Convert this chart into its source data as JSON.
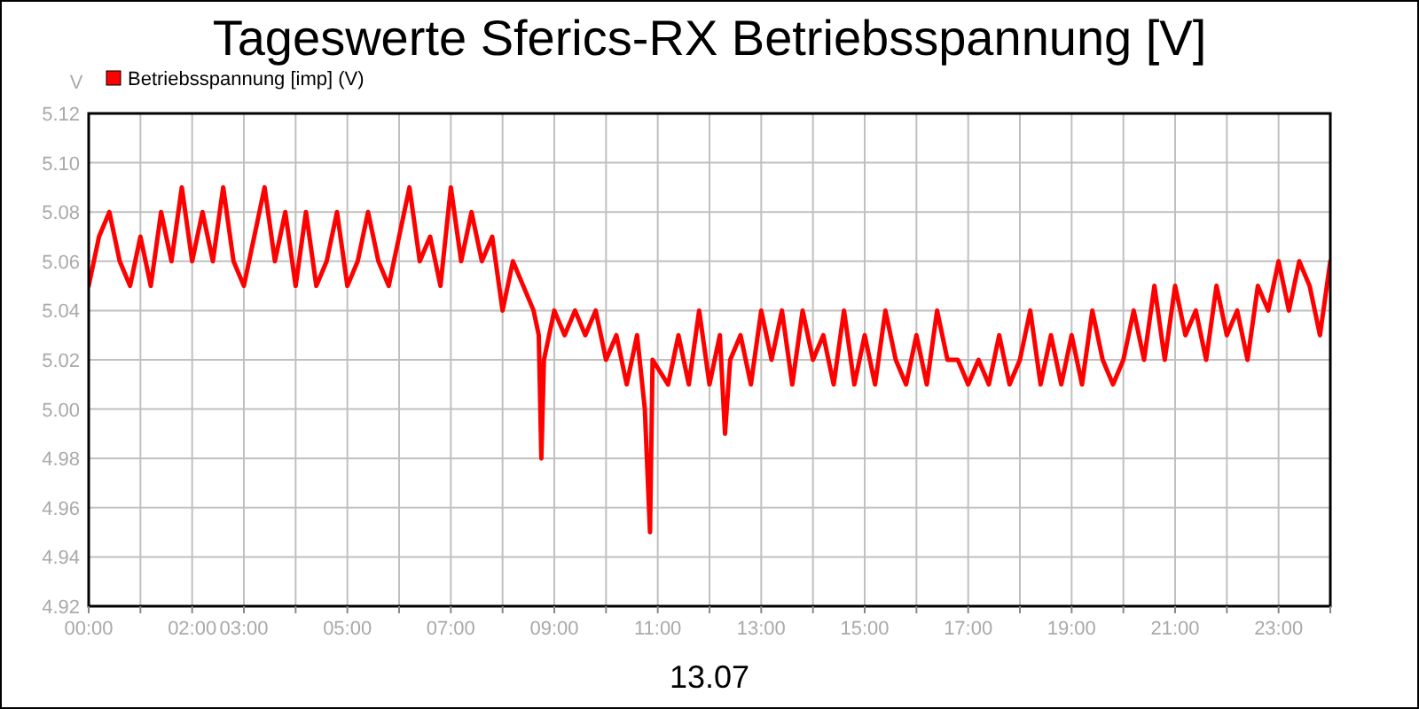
{
  "chart_data": {
    "type": "line",
    "title": "Tageswerte Sferics-RX Betriebsspannung [V]",
    "xlabel": "13.07",
    "ylabel": "V",
    "x": [
      0,
      0.2,
      0.4,
      0.6,
      0.8,
      1.0,
      1.2,
      1.4,
      1.6,
      1.8,
      2.0,
      2.2,
      2.4,
      2.6,
      2.8,
      3.0,
      3.2,
      3.4,
      3.6,
      3.8,
      4.0,
      4.2,
      4.4,
      4.6,
      4.8,
      5.0,
      5.2,
      5.4,
      5.6,
      5.8,
      6.0,
      6.2,
      6.4,
      6.6,
      6.8,
      7.0,
      7.2,
      7.4,
      7.6,
      7.8,
      8.0,
      8.2,
      8.4,
      8.6,
      8.7,
      8.75,
      8.8,
      9.0,
      9.2,
      9.4,
      9.6,
      9.8,
      10.0,
      10.2,
      10.4,
      10.6,
      10.75,
      10.85,
      10.9,
      11.2,
      11.4,
      11.6,
      11.8,
      12.0,
      12.2,
      12.3,
      12.4,
      12.6,
      12.8,
      13.0,
      13.2,
      13.4,
      13.6,
      13.8,
      14.0,
      14.2,
      14.4,
      14.6,
      14.8,
      15.0,
      15.2,
      15.4,
      15.6,
      15.8,
      16.0,
      16.2,
      16.4,
      16.6,
      16.8,
      17.0,
      17.2,
      17.4,
      17.6,
      17.8,
      18.0,
      18.2,
      18.4,
      18.6,
      18.8,
      19.0,
      19.2,
      19.4,
      19.6,
      19.8,
      20.0,
      20.2,
      20.4,
      20.6,
      20.8,
      21.0,
      21.2,
      21.4,
      21.6,
      21.8,
      22.0,
      22.2,
      22.4,
      22.6,
      22.8,
      23.0,
      23.2,
      23.4,
      23.6,
      23.8,
      24.0
    ],
    "series": [
      {
        "name": "Betriebsspannung [imp] (V)",
        "color": "#ff0000",
        "values": [
          5.05,
          5.07,
          5.08,
          5.06,
          5.05,
          5.07,
          5.05,
          5.08,
          5.06,
          5.09,
          5.06,
          5.08,
          5.06,
          5.09,
          5.06,
          5.05,
          5.07,
          5.09,
          5.06,
          5.08,
          5.05,
          5.08,
          5.05,
          5.06,
          5.08,
          5.05,
          5.06,
          5.08,
          5.06,
          5.05,
          5.07,
          5.09,
          5.06,
          5.07,
          5.05,
          5.09,
          5.06,
          5.08,
          5.06,
          5.07,
          5.04,
          5.06,
          5.05,
          5.04,
          5.03,
          4.98,
          5.02,
          5.04,
          5.03,
          5.04,
          5.03,
          5.04,
          5.02,
          5.03,
          5.01,
          5.03,
          5.0,
          4.95,
          5.02,
          5.01,
          5.03,
          5.01,
          5.04,
          5.01,
          5.03,
          4.99,
          5.02,
          5.03,
          5.01,
          5.04,
          5.02,
          5.04,
          5.01,
          5.04,
          5.02,
          5.03,
          5.01,
          5.04,
          5.01,
          5.03,
          5.01,
          5.04,
          5.02,
          5.01,
          5.03,
          5.01,
          5.04,
          5.02,
          5.02,
          5.01,
          5.02,
          5.01,
          5.03,
          5.01,
          5.02,
          5.04,
          5.01,
          5.03,
          5.01,
          5.03,
          5.01,
          5.04,
          5.02,
          5.01,
          5.02,
          5.04,
          5.02,
          5.05,
          5.02,
          5.05,
          5.03,
          5.04,
          5.02,
          5.05,
          5.03,
          5.04,
          5.02,
          5.05,
          5.04,
          5.06,
          5.04,
          5.06,
          5.05,
          5.03,
          5.06
        ]
      }
    ],
    "xlim": [
      0,
      24
    ],
    "xticks": [
      {
        "value": 0,
        "label": "00:00"
      },
      {
        "value": 1,
        "label": null
      },
      {
        "value": 2,
        "label": "02:00"
      },
      {
        "value": 3,
        "label": "03:00"
      },
      {
        "value": 4,
        "label": null
      },
      {
        "value": 5,
        "label": "05:00"
      },
      {
        "value": 6,
        "label": null
      },
      {
        "value": 7,
        "label": "07:00"
      },
      {
        "value": 8,
        "label": null
      },
      {
        "value": 9,
        "label": "09:00"
      },
      {
        "value": 10,
        "label": null
      },
      {
        "value": 11,
        "label": "11:00"
      },
      {
        "value": 12,
        "label": null
      },
      {
        "value": 13,
        "label": "13:00"
      },
      {
        "value": 14,
        "label": null
      },
      {
        "value": 15,
        "label": "15:00"
      },
      {
        "value": 16,
        "label": null
      },
      {
        "value": 17,
        "label": "17:00"
      },
      {
        "value": 18,
        "label": null
      },
      {
        "value": 19,
        "label": "19:00"
      },
      {
        "value": 20,
        "label": null
      },
      {
        "value": 21,
        "label": "21:00"
      },
      {
        "value": 22,
        "label": null
      },
      {
        "value": 23,
        "label": "23:00"
      },
      {
        "value": 24,
        "label": null
      }
    ],
    "ylim": [
      4.92,
      5.12
    ],
    "yticks": [
      {
        "value": 4.92,
        "label": "4.92"
      },
      {
        "value": 4.94,
        "label": "4.94"
      },
      {
        "value": 4.96,
        "label": "4.96"
      },
      {
        "value": 4.98,
        "label": "4.98"
      },
      {
        "value": 5.0,
        "label": "5.00"
      },
      {
        "value": 5.02,
        "label": "5.02"
      },
      {
        "value": 5.04,
        "label": "5.04"
      },
      {
        "value": 5.06,
        "label": "5.06"
      },
      {
        "value": 5.08,
        "label": "5.08"
      },
      {
        "value": 5.1,
        "label": "5.10"
      },
      {
        "value": 5.12,
        "label": "5.12"
      }
    ],
    "grid": true,
    "legend": "top left",
    "marker": "none",
    "line_style": "solid"
  }
}
